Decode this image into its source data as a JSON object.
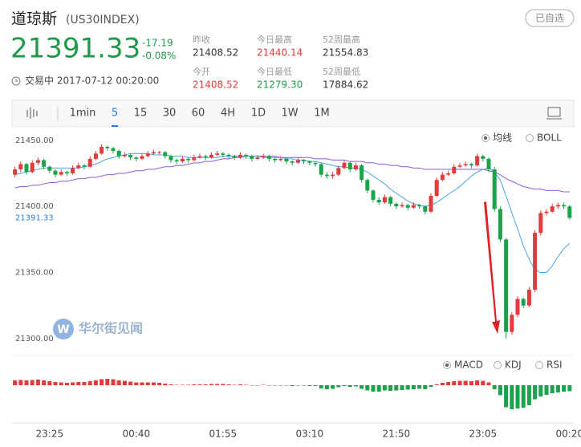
{
  "header": {
    "title": "道琼斯",
    "code": "(US30INDEX)",
    "button": "已自选",
    "price": "21391.33",
    "change": "-17.19",
    "change_pct": "-0.08%",
    "status": "交易中 2017-07-12 00:20:00",
    "stats": [
      {
        "label": "昨收",
        "value": "21408.52",
        "color": "#333333"
      },
      {
        "label": "今日最高",
        "value": "21440.14",
        "color": "#e03c3c"
      },
      {
        "label": "52周最高",
        "value": "21554.83",
        "color": "#333333"
      },
      {
        "label": "今开",
        "value": "21408.52",
        "color": "#e03c3c"
      },
      {
        "label": "今日最低",
        "value": "21279.30",
        "color": "#1f9a4a"
      },
      {
        "label": "52周最低",
        "value": "17884.62",
        "color": "#333333"
      }
    ]
  },
  "toolbar": {
    "periods": [
      "1min",
      "5",
      "15",
      "30",
      "60",
      "4H",
      "1D",
      "1W",
      "1M"
    ],
    "active_index": 1
  },
  "watermark": "华尔街见闻",
  "chart_data": [
    {
      "type": "candlestick",
      "indicators": [
        "均线",
        "BOLL"
      ],
      "up_color": "#e03c3c",
      "down_color": "#1aa34a",
      "ylim": [
        21289,
        21459
      ],
      "yticks": [
        {
          "value": 21450,
          "label": "21450.00"
        },
        {
          "value": 21400,
          "label": "21400.00"
        },
        {
          "value": 21350,
          "label": "21350.00"
        },
        {
          "value": 21300,
          "label": "21300.00"
        }
      ],
      "categories": [
        null,
        null,
        null,
        null,
        null,
        null,
        "23:25",
        null,
        null,
        null,
        null,
        null,
        null,
        null,
        null,
        null,
        null,
        null,
        null,
        null,
        null,
        "00:40",
        null,
        null,
        null,
        null,
        null,
        null,
        null,
        null,
        null,
        null,
        null,
        null,
        null,
        null,
        "01:55",
        null,
        null,
        null,
        null,
        null,
        null,
        null,
        null,
        null,
        null,
        null,
        null,
        null,
        null,
        "03:10",
        null,
        null,
        null,
        null,
        null,
        null,
        null,
        null,
        null,
        null,
        null,
        null,
        null,
        null,
        "21:50",
        null,
        null,
        null,
        null,
        null,
        null,
        null,
        null,
        null,
        null,
        null,
        null,
        null,
        null,
        "23:05",
        null,
        null,
        null,
        null,
        null,
        null,
        null,
        null,
        null,
        null,
        null,
        null,
        null,
        null,
        "00:20"
      ],
      "open": [
        21424,
        21428,
        21432,
        21426,
        21433,
        21435,
        21430,
        21427,
        21424,
        21426,
        21425,
        21429,
        21431,
        21430,
        21436,
        21440,
        21445,
        21444,
        21442,
        21438,
        21439,
        21437,
        21436,
        21438,
        21440,
        21441,
        21441,
        21438,
        21435,
        21434,
        21436,
        21435,
        21437,
        21438,
        21437,
        21439,
        21440,
        21439,
        21438,
        21437,
        21439,
        21438,
        21436,
        21437,
        21438,
        21436,
        21435,
        21436,
        21434,
        21433,
        21435,
        21434,
        21433,
        21432,
        21424,
        21423,
        21424,
        21429,
        21433,
        21428,
        21431,
        21420,
        21412,
        21405,
        21403,
        21407,
        21402,
        21400,
        21401,
        21399,
        21401,
        21400,
        21396,
        21408,
        21420,
        21424,
        21425,
        21430,
        21431,
        21432,
        21431,
        21438,
        21436,
        21428,
        21398,
        21375,
        21305,
        21318,
        21330,
        21325,
        21337,
        21380,
        21395,
        21396,
        21400,
        21401,
        21400
      ],
      "close": [
        21428,
        21432,
        21426,
        21433,
        21435,
        21430,
        21427,
        21424,
        21426,
        21425,
        21429,
        21431,
        21430,
        21436,
        21440,
        21445,
        21444,
        21442,
        21438,
        21439,
        21437,
        21436,
        21438,
        21440,
        21441,
        21441,
        21438,
        21435,
        21434,
        21436,
        21435,
        21437,
        21438,
        21437,
        21439,
        21440,
        21439,
        21438,
        21437,
        21439,
        21438,
        21436,
        21437,
        21438,
        21436,
        21435,
        21436,
        21434,
        21433,
        21435,
        21434,
        21433,
        21432,
        21424,
        21423,
        21424,
        21429,
        21433,
        21428,
        21431,
        21420,
        21412,
        21405,
        21403,
        21407,
        21402,
        21400,
        21401,
        21399,
        21401,
        21400,
        21396,
        21408,
        21420,
        21424,
        21425,
        21430,
        21431,
        21432,
        21431,
        21438,
        21436,
        21428,
        21398,
        21375,
        21305,
        21318,
        21330,
        21325,
        21337,
        21380,
        21395,
        21396,
        21400,
        21401,
        21400,
        21391.33
      ],
      "high": [
        21430,
        21434,
        21433,
        21435,
        21437,
        21436,
        21431,
        21428,
        21428,
        21427,
        21431,
        21433,
        21432,
        21438,
        21442,
        21447,
        21446,
        21445,
        21443,
        21441,
        21440,
        21438,
        21440,
        21442,
        21443,
        21442,
        21442,
        21439,
        21436,
        21438,
        21437,
        21439,
        21440,
        21439,
        21441,
        21442,
        21441,
        21440,
        21439,
        21441,
        21440,
        21439,
        21439,
        21440,
        21439,
        21437,
        21438,
        21437,
        21435,
        21437,
        21436,
        21435,
        21434,
        21433,
        21426,
        21426,
        21431,
        21435,
        21434,
        21433,
        21432,
        21421,
        21413,
        21407,
        21409,
        21408,
        21403,
        21403,
        21402,
        21403,
        21402,
        21401,
        21410,
        21422,
        21426,
        21427,
        21432,
        21433,
        21434,
        21433,
        21440,
        21439,
        21437,
        21430,
        21400,
        21376,
        21320,
        21332,
        21331,
        21339,
        21382,
        21397,
        21398,
        21402,
        21403,
        21403,
        21401
      ],
      "low": [
        21422,
        21426,
        21424,
        21425,
        21431,
        21428,
        21425,
        21422,
        21423,
        21423,
        21424,
        21428,
        21428,
        21429,
        21435,
        21439,
        21442,
        21440,
        21436,
        21437,
        21435,
        21434,
        21435,
        21437,
        21439,
        21439,
        21436,
        21433,
        21432,
        21433,
        21433,
        21434,
        21436,
        21435,
        21436,
        21438,
        21437,
        21436,
        21435,
        21436,
        21436,
        21434,
        21435,
        21436,
        21434,
        21433,
        21434,
        21432,
        21431,
        21432,
        21432,
        21431,
        21430,
        21422,
        21421,
        21421,
        21423,
        21428,
        21426,
        21427,
        21418,
        21410,
        21403,
        21401,
        21402,
        21400,
        21398,
        21399,
        21397,
        21398,
        21398,
        21394,
        21395,
        21407,
        21419,
        21423,
        21424,
        21429,
        21430,
        21429,
        21430,
        21434,
        21426,
        21396,
        21373,
        21300,
        21303,
        21316,
        21323,
        21324,
        21335,
        21378,
        21393,
        21395,
        21398,
        21398,
        21390
      ],
      "lines": [
        {
          "color": "#8a5bd6",
          "values": [
            21414,
            21415,
            21415,
            21416,
            21416,
            21417,
            21418,
            21418,
            21419,
            21419,
            21420,
            21421,
            21421,
            21422,
            21422,
            21423,
            21424,
            21424,
            21425,
            21425,
            21426,
            21427,
            21427,
            21428,
            21428,
            21429,
            21430,
            21430,
            21431,
            21431,
            21432,
            21433,
            21433,
            21434,
            21434,
            21435,
            21436,
            21436,
            21437,
            21437,
            21438,
            21438,
            21438,
            21438,
            21438,
            21438,
            21437,
            21437,
            21437,
            21437,
            21437,
            21437,
            21436,
            21436,
            21436,
            21435,
            21435,
            21435,
            21434,
            21434,
            21434,
            21433,
            21433,
            21432,
            21432,
            21431,
            21431,
            21430,
            21430,
            21429,
            21429,
            21428,
            21428,
            21428,
            21428,
            21428,
            21428,
            21428,
            21428,
            21428,
            21428,
            21428,
            21427,
            21426,
            21424,
            21421,
            21419,
            21417,
            21415,
            21414,
            21413,
            21413,
            21412,
            21412,
            21412,
            21411,
            21411
          ]
        },
        {
          "color": "#4aa3e8",
          "values": [
            21424,
            21425,
            21426,
            21427,
            21428,
            21429,
            21429,
            21429,
            21429,
            21429,
            21429,
            21429,
            21430,
            21431,
            21432,
            21434,
            21436,
            21437,
            21438,
            21439,
            21440,
            21440,
            21440,
            21440,
            21439,
            21439,
            21439,
            21438,
            21438,
            21438,
            21437,
            21437,
            21437,
            21437,
            21437,
            21437,
            21438,
            21438,
            21438,
            21438,
            21438,
            21438,
            21438,
            21437,
            21437,
            21437,
            21437,
            21436,
            21436,
            21435,
            21435,
            21434,
            21434,
            21433,
            21432,
            21431,
            21430,
            21430,
            21429,
            21429,
            21428,
            21426,
            21423,
            21420,
            21417,
            21413,
            21410,
            21407,
            21404,
            21402,
            21401,
            21400,
            21401,
            21403,
            21406,
            21409,
            21412,
            21415,
            21419,
            21423,
            21426,
            21428,
            21429,
            21426,
            21420,
            21408,
            21395,
            21383,
            21370,
            21360,
            21352,
            21350,
            21350,
            21355,
            21362,
            21368,
            21372
          ]
        }
      ]
    },
    {
      "type": "bar",
      "indicators": [
        "MACD",
        "KDJ",
        "RSI"
      ],
      "ylim": [
        -7,
        5
      ],
      "up_color": "#e03c3c",
      "down_color": "#1aa34a",
      "values": [
        1.2,
        1.3,
        1.2,
        1.3,
        1.4,
        1.2,
        1.0,
        0.8,
        0.7,
        0.6,
        0.7,
        0.8,
        0.8,
        1.0,
        1.2,
        1.5,
        1.6,
        1.5,
        1.2,
        1.1,
        0.9,
        0.7,
        0.7,
        0.7,
        0.7,
        0.6,
        0.4,
        0.2,
        0.1,
        0.1,
        0.1,
        0.2,
        0.2,
        0.2,
        0.3,
        0.3,
        0.3,
        0.2,
        0.1,
        0.2,
        0.1,
        0.0,
        0.0,
        0.1,
        0.0,
        -0.1,
        0.0,
        -0.1,
        -0.2,
        -0.1,
        -0.1,
        -0.2,
        -0.2,
        -0.8,
        -1.0,
        -0.9,
        -0.5,
        -0.2,
        -0.4,
        -0.3,
        -0.9,
        -1.3,
        -1.6,
        -1.6,
        -1.3,
        -1.4,
        -1.3,
        -1.2,
        -1.1,
        -1.0,
        -0.9,
        -1.0,
        -0.4,
        0.2,
        0.6,
        0.8,
        1.0,
        1.1,
        1.1,
        1.0,
        1.2,
        1.1,
        0.7,
        -1.0,
        -2.5,
        -5.5,
        -6.0,
        -5.8,
        -5.6,
        -5.0,
        -3.5,
        -2.8,
        -2.4,
        -2.0,
        -1.8,
        -1.6,
        -1.5
      ]
    }
  ]
}
